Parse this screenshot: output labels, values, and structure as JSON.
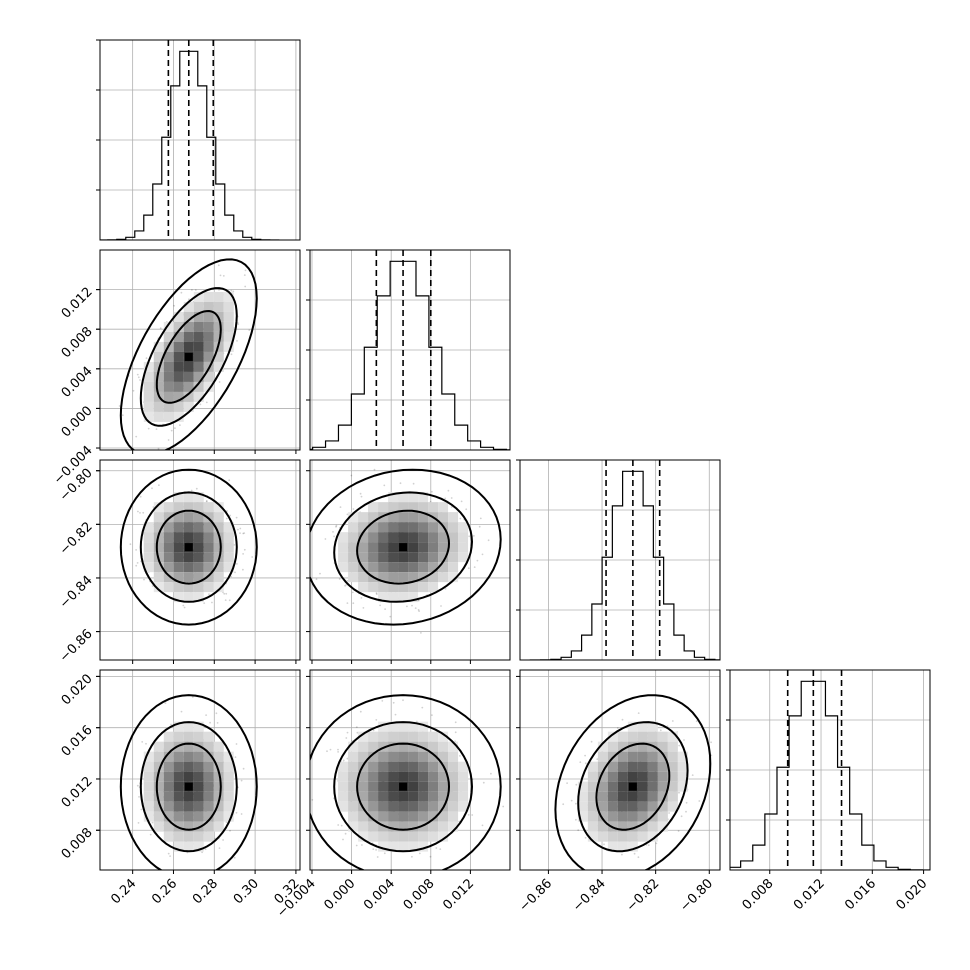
{
  "chart_data": {
    "type": "corner",
    "parameters": [
      {
        "ticks": [
          0.24,
          0.26,
          0.28,
          0.3,
          0.32
        ],
        "tick_labels": [
          "0.24",
          "0.26",
          "0.28",
          "0.30",
          "0.32"
        ],
        "range": [
          0.224,
          0.322
        ],
        "mean": 0.2675,
        "std": 0.0098,
        "quantiles": [
          0.2575,
          0.2675,
          0.2795
        ]
      },
      {
        "ticks": [
          -0.004,
          0.0,
          0.004,
          0.008,
          0.012
        ],
        "tick_labels": [
          "−0.004",
          "0.000",
          "0.004",
          "0.008",
          "0.012"
        ],
        "range": [
          -0.0042,
          0.016
        ],
        "mean": 0.0052,
        "std": 0.0029,
        "quantiles": [
          0.0025,
          0.0052,
          0.008
        ]
      },
      {
        "ticks": [
          -0.86,
          -0.84,
          -0.82,
          -0.8
        ],
        "tick_labels": [
          "−0.86",
          "−0.84",
          "−0.82",
          "−0.80"
        ],
        "range": [
          -0.8706,
          -0.796
        ],
        "mean": -0.8285,
        "std": 0.0085,
        "quantiles": [
          -0.8385,
          -0.8285,
          -0.8185
        ]
      },
      {
        "ticks": [
          0.008,
          0.012,
          0.016,
          0.02
        ],
        "tick_labels": [
          "0.008",
          "0.012",
          "0.016",
          "0.020"
        ],
        "range": [
          0.0049,
          0.0205
        ],
        "mean": 0.0114,
        "std": 0.0021,
        "quantiles": [
          0.0094,
          0.0114,
          0.0136
        ]
      }
    ],
    "correlations": {
      "1-0": 0.6,
      "2-0": 0.0,
      "2-1": 0.1,
      "3-0": 0.0,
      "3-1": 0.0,
      "3-2": 0.25
    },
    "grid": true
  }
}
